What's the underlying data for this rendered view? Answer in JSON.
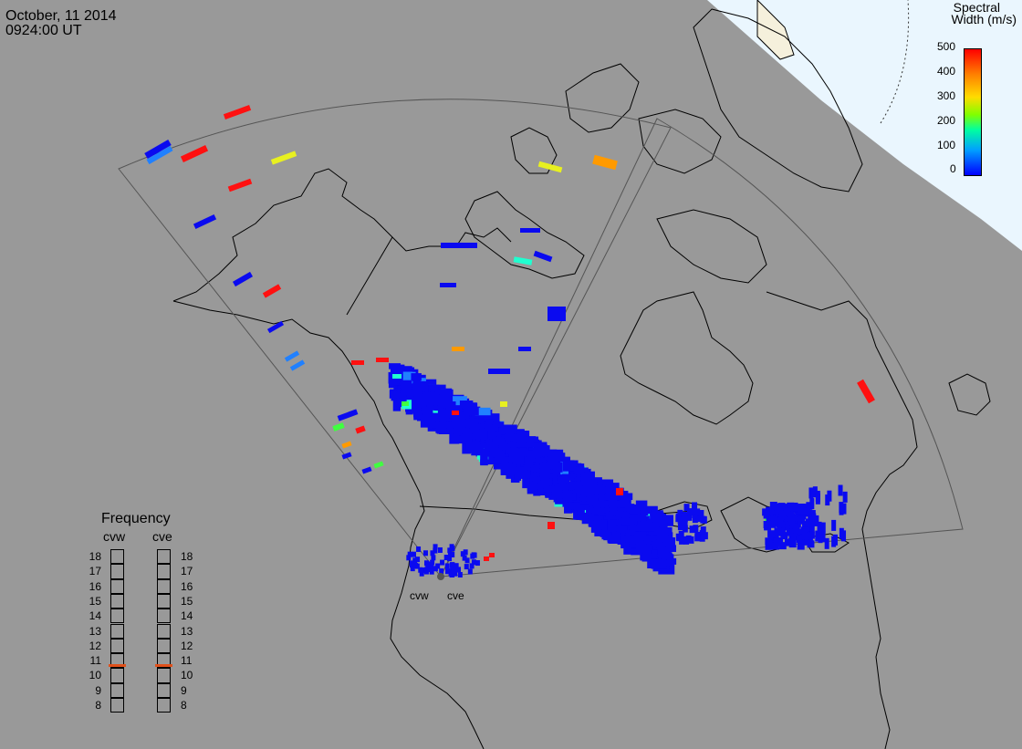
{
  "header": {
    "date": "October, 11 2014",
    "time": "0924:00 UT"
  },
  "colorbar": {
    "title_line1": "Spectral",
    "title_line2": "Width (m/s)",
    "ticks": [
      "500",
      "400",
      "300",
      "200",
      "100",
      "0"
    ],
    "range": [
      0,
      500
    ]
  },
  "radars": [
    {
      "code": "cvw",
      "label": "cvw"
    },
    {
      "code": "cve",
      "label": "cve"
    }
  ],
  "frequency_panel": {
    "title": "Frequency",
    "columns": [
      "cvw",
      "cve"
    ],
    "levels": [
      "18",
      "17",
      "16",
      "15",
      "14",
      "13",
      "12",
      "11",
      "10",
      "9",
      "8"
    ],
    "current_mhz": {
      "cvw": 10.8,
      "cve": 10.8
    },
    "marker_color": "#e0501a"
  },
  "colors": {
    "land": "#999999",
    "sunlit": "#eaf6fe",
    "border": "#000000",
    "fov_outline": "#555555"
  }
}
